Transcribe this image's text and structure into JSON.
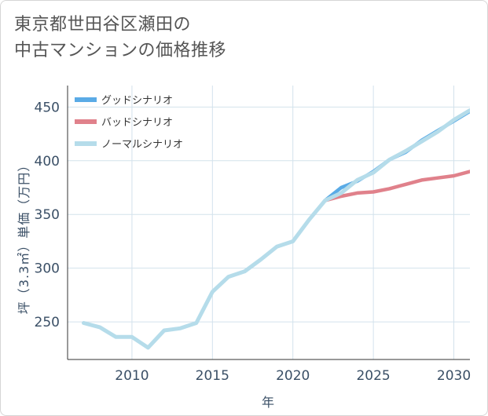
{
  "header": {
    "title_line1": "東京都世田谷区瀬田の",
    "title_line2": "中古マンションの価格推移"
  },
  "chart_data": {
    "type": "line",
    "xlabel": "年",
    "ylabel": "坪（3.3㎡）単価（万円）",
    "xlim": [
      2006,
      2031
    ],
    "ylim": [
      215,
      470
    ],
    "x_ticks": [
      2010,
      2015,
      2020,
      2025,
      2030
    ],
    "y_ticks": [
      250,
      300,
      350,
      400,
      450
    ],
    "grid": true,
    "legend_position": "top-left",
    "series": [
      {
        "name": "グッドシナリオ",
        "color": "#5aabe6",
        "x": [
          2022,
          2023,
          2024,
          2025,
          2026,
          2027,
          2028,
          2029,
          2030,
          2031
        ],
        "values": [
          363,
          375,
          381,
          390,
          401,
          408,
          419,
          428,
          437,
          446
        ]
      },
      {
        "name": "バッドシナリオ",
        "color": "#e0818b",
        "x": [
          2022,
          2023,
          2024,
          2025,
          2026,
          2027,
          2028,
          2029,
          2030,
          2031
        ],
        "values": [
          363,
          367,
          370,
          371,
          374,
          378,
          382,
          384,
          386,
          390
        ]
      },
      {
        "name": "ノーマルシナリオ",
        "color": "#b5dcea",
        "x": [
          2007,
          2008,
          2009,
          2010,
          2011,
          2012,
          2013,
          2014,
          2015,
          2016,
          2017,
          2018,
          2019,
          2020,
          2021,
          2022,
          2023,
          2024,
          2025,
          2026,
          2027,
          2028,
          2029,
          2030,
          2031
        ],
        "values": [
          249,
          245,
          236,
          236,
          226,
          242,
          244,
          249,
          278,
          292,
          297,
          308,
          320,
          325,
          345,
          363,
          370,
          382,
          389,
          401,
          409,
          418,
          427,
          438,
          447
        ]
      }
    ]
  }
}
